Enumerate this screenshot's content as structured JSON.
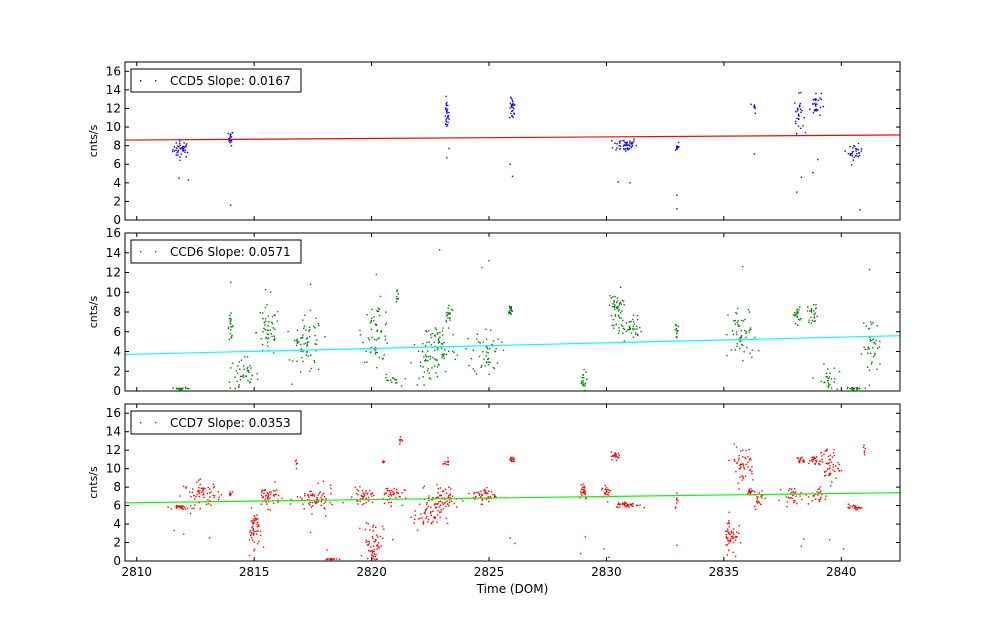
{
  "chart_data": [
    {
      "type": "scatter",
      "ylabel": "cnts/s",
      "xlabel": "",
      "xlim": [
        2809.5,
        2842.5
      ],
      "ylim": [
        0,
        17
      ],
      "yticks": [
        0,
        2,
        4,
        6,
        8,
        10,
        12,
        14,
        16
      ],
      "legend": "CCD5 Slope: 0.0167",
      "legend_placement": "top-left",
      "point_color": "#0000ff",
      "fit_color": "#ff0000",
      "fit_line": {
        "x": [
          2809.5,
          2842.5
        ],
        "y": [
          8.6,
          9.15
        ]
      },
      "clusters": [
        {
          "x": 2811.9,
          "y": 7.6,
          "n": 40,
          "sx": 0.18,
          "sy": 0.45
        },
        {
          "x": 2814.0,
          "y": 8.8,
          "n": 18,
          "sx": 0.05,
          "sy": 0.4
        },
        {
          "x": 2823.2,
          "y": 11.3,
          "n": 28,
          "sx": 0.05,
          "sy": 0.8
        },
        {
          "x": 2826.0,
          "y": 11.9,
          "n": 26,
          "sx": 0.06,
          "sy": 0.6
        },
        {
          "x": 2830.8,
          "y": 8.1,
          "n": 50,
          "sx": 0.25,
          "sy": 0.4
        },
        {
          "x": 2833.0,
          "y": 7.9,
          "n": 10,
          "sx": 0.05,
          "sy": 0.3
        },
        {
          "x": 2836.3,
          "y": 12.1,
          "n": 8,
          "sx": 0.04,
          "sy": 0.3
        },
        {
          "x": 2838.2,
          "y": 11.4,
          "n": 28,
          "sx": 0.1,
          "sy": 1.0
        },
        {
          "x": 2838.9,
          "y": 12.4,
          "n": 30,
          "sx": 0.12,
          "sy": 0.7
        },
        {
          "x": 2840.6,
          "y": 7.3,
          "n": 30,
          "sx": 0.15,
          "sy": 0.4
        }
      ],
      "outliers": [
        [
          2811.8,
          4.5
        ],
        [
          2812.2,
          4.3
        ],
        [
          2814.0,
          1.6
        ],
        [
          2823.2,
          6.7
        ],
        [
          2823.3,
          7.7
        ],
        [
          2825.9,
          6.0
        ],
        [
          2826.0,
          4.7
        ],
        [
          2830.5,
          4.1
        ],
        [
          2831.0,
          4.0
        ],
        [
          2833.0,
          2.7
        ],
        [
          2833.0,
          1.2
        ],
        [
          2836.3,
          7.1
        ],
        [
          2838.1,
          3.0
        ],
        [
          2838.3,
          4.6
        ],
        [
          2838.8,
          5.1
        ],
        [
          2839.0,
          6.5
        ],
        [
          2840.8,
          1.1
        ]
      ]
    },
    {
      "type": "scatter",
      "ylabel": "cnts/s",
      "xlabel": "",
      "xlim": [
        2809.5,
        2842.5
      ],
      "ylim": [
        0,
        16
      ],
      "yticks": [
        0,
        2,
        4,
        6,
        8,
        10,
        12,
        14,
        16
      ],
      "legend": "CCD6 Slope: 0.0571",
      "legend_placement": "top-left",
      "point_color": "#008000",
      "fit_color": "#00ffff",
      "fit_line": {
        "x": [
          2809.5,
          2842.5
        ],
        "y": [
          3.7,
          5.6
        ]
      },
      "clusters": [
        {
          "x": 2811.9,
          "y": 0.25,
          "n": 20,
          "sx": 0.2,
          "sy": 0.05
        },
        {
          "x": 2814.0,
          "y": 6.5,
          "n": 22,
          "sx": 0.06,
          "sy": 0.6
        },
        {
          "x": 2814.5,
          "y": 1.5,
          "n": 45,
          "sx": 0.35,
          "sy": 1.0
        },
        {
          "x": 2815.6,
          "y": 6.0,
          "n": 50,
          "sx": 0.25,
          "sy": 1.3
        },
        {
          "x": 2816.8,
          "y": 5.0,
          "n": 6,
          "sx": 0.05,
          "sy": 0.5
        },
        {
          "x": 2817.3,
          "y": 4.5,
          "n": 60,
          "sx": 0.3,
          "sy": 1.5
        },
        {
          "x": 2820.2,
          "y": 6.0,
          "n": 60,
          "sx": 0.3,
          "sy": 1.5
        },
        {
          "x": 2820.8,
          "y": 1.0,
          "n": 15,
          "sx": 0.2,
          "sy": 0.3
        },
        {
          "x": 2821.1,
          "y": 9.5,
          "n": 8,
          "sx": 0.05,
          "sy": 0.4
        },
        {
          "x": 2822.3,
          "y": 2.8,
          "n": 40,
          "sx": 0.3,
          "sy": 1.3
        },
        {
          "x": 2822.9,
          "y": 4.5,
          "n": 60,
          "sx": 0.35,
          "sy": 1.4
        },
        {
          "x": 2823.3,
          "y": 7.8,
          "n": 20,
          "sx": 0.1,
          "sy": 0.5
        },
        {
          "x": 2824.9,
          "y": 4.0,
          "n": 50,
          "sx": 0.3,
          "sy": 1.2
        },
        {
          "x": 2825.9,
          "y": 8.2,
          "n": 20,
          "sx": 0.05,
          "sy": 0.3
        },
        {
          "x": 2829.0,
          "y": 1.0,
          "n": 20,
          "sx": 0.08,
          "sy": 0.5
        },
        {
          "x": 2830.4,
          "y": 8.5,
          "n": 40,
          "sx": 0.15,
          "sy": 0.6
        },
        {
          "x": 2830.9,
          "y": 6.4,
          "n": 50,
          "sx": 0.3,
          "sy": 0.6
        },
        {
          "x": 2833.0,
          "y": 6.2,
          "n": 12,
          "sx": 0.05,
          "sy": 0.5
        },
        {
          "x": 2835.8,
          "y": 5.5,
          "n": 55,
          "sx": 0.3,
          "sy": 1.5
        },
        {
          "x": 2838.1,
          "y": 7.7,
          "n": 20,
          "sx": 0.08,
          "sy": 0.4
        },
        {
          "x": 2838.8,
          "y": 7.9,
          "n": 25,
          "sx": 0.12,
          "sy": 0.5
        },
        {
          "x": 2839.4,
          "y": 1.0,
          "n": 30,
          "sx": 0.2,
          "sy": 0.8
        },
        {
          "x": 2840.6,
          "y": 0.25,
          "n": 20,
          "sx": 0.2,
          "sy": 0.05
        },
        {
          "x": 2841.3,
          "y": 4.5,
          "n": 40,
          "sx": 0.2,
          "sy": 1.5
        }
      ],
      "outliers": [
        [
          2814.0,
          11.0
        ],
        [
          2815.7,
          10.0
        ],
        [
          2817.4,
          10.8
        ],
        [
          2820.2,
          11.8
        ],
        [
          2822.9,
          14.3
        ],
        [
          2824.7,
          12.5
        ],
        [
          2825.0,
          13.2
        ],
        [
          2830.6,
          10.5
        ],
        [
          2835.8,
          12.6
        ],
        [
          2841.2,
          12.3
        ]
      ]
    },
    {
      "type": "scatter",
      "ylabel": "cnts/s",
      "xlabel": "Time (DOM)",
      "xlim": [
        2809.5,
        2842.5
      ],
      "ylim": [
        0,
        17
      ],
      "yticks": [
        0,
        2,
        4,
        6,
        8,
        10,
        12,
        14,
        16
      ],
      "xticks": [
        2810,
        2815,
        2820,
        2825,
        2830,
        2835,
        2840
      ],
      "legend": "CCD7 Slope: 0.0353",
      "legend_placement": "top-left",
      "point_color": "#ff0000",
      "fit_color": "#00ff00",
      "fit_line": {
        "x": [
          2809.5,
          2842.5
        ],
        "y": [
          6.3,
          7.4
        ]
      },
      "clusters": [
        {
          "x": 2811.9,
          "y": 5.8,
          "n": 25,
          "sx": 0.15,
          "sy": 0.1
        },
        {
          "x": 2812.8,
          "y": 7.2,
          "n": 70,
          "sx": 0.4,
          "sy": 0.7
        },
        {
          "x": 2814.0,
          "y": 7.2,
          "n": 8,
          "sx": 0.05,
          "sy": 0.2
        },
        {
          "x": 2815.0,
          "y": 3.5,
          "n": 50,
          "sx": 0.1,
          "sy": 1.0
        },
        {
          "x": 2815.6,
          "y": 7.0,
          "n": 50,
          "sx": 0.25,
          "sy": 0.6
        },
        {
          "x": 2816.8,
          "y": 10.1,
          "n": 6,
          "sx": 0.03,
          "sy": 0.3
        },
        {
          "x": 2817.6,
          "y": 6.6,
          "n": 70,
          "sx": 0.4,
          "sy": 0.7
        },
        {
          "x": 2818.3,
          "y": 0.2,
          "n": 20,
          "sx": 0.15,
          "sy": 0.05
        },
        {
          "x": 2819.6,
          "y": 7.0,
          "n": 40,
          "sx": 0.2,
          "sy": 0.4
        },
        {
          "x": 2820.1,
          "y": 2.0,
          "n": 60,
          "sx": 0.2,
          "sy": 1.2
        },
        {
          "x": 2820.5,
          "y": 10.8,
          "n": 5,
          "sx": 0.03,
          "sy": 0.1
        },
        {
          "x": 2820.8,
          "y": 7.1,
          "n": 40,
          "sx": 0.3,
          "sy": 0.5
        },
        {
          "x": 2821.2,
          "y": 13.1,
          "n": 8,
          "sx": 0.04,
          "sy": 0.3
        },
        {
          "x": 2822.4,
          "y": 5.0,
          "n": 60,
          "sx": 0.3,
          "sy": 0.9
        },
        {
          "x": 2823.1,
          "y": 6.8,
          "n": 60,
          "sx": 0.35,
          "sy": 0.7
        },
        {
          "x": 2823.2,
          "y": 10.8,
          "n": 12,
          "sx": 0.05,
          "sy": 0.2
        },
        {
          "x": 2824.8,
          "y": 7.1,
          "n": 50,
          "sx": 0.25,
          "sy": 0.4
        },
        {
          "x": 2826.0,
          "y": 11.0,
          "n": 15,
          "sx": 0.06,
          "sy": 0.2
        },
        {
          "x": 2829.0,
          "y": 7.7,
          "n": 25,
          "sx": 0.1,
          "sy": 0.5
        },
        {
          "x": 2830.0,
          "y": 7.5,
          "n": 20,
          "sx": 0.1,
          "sy": 0.4
        },
        {
          "x": 2830.4,
          "y": 11.4,
          "n": 25,
          "sx": 0.1,
          "sy": 0.2
        },
        {
          "x": 2830.9,
          "y": 6.1,
          "n": 40,
          "sx": 0.25,
          "sy": 0.15
        },
        {
          "x": 2833.0,
          "y": 6.5,
          "n": 8,
          "sx": 0.04,
          "sy": 0.5
        },
        {
          "x": 2835.3,
          "y": 2.8,
          "n": 50,
          "sx": 0.15,
          "sy": 1.0
        },
        {
          "x": 2835.8,
          "y": 10.5,
          "n": 50,
          "sx": 0.25,
          "sy": 1.0
        },
        {
          "x": 2836.1,
          "y": 7.5,
          "n": 20,
          "sx": 0.1,
          "sy": 0.2
        },
        {
          "x": 2836.5,
          "y": 6.8,
          "n": 20,
          "sx": 0.1,
          "sy": 0.5
        },
        {
          "x": 2837.9,
          "y": 7.1,
          "n": 30,
          "sx": 0.2,
          "sy": 0.4
        },
        {
          "x": 2838.3,
          "y": 10.9,
          "n": 15,
          "sx": 0.1,
          "sy": 0.2
        },
        {
          "x": 2838.9,
          "y": 10.9,
          "n": 25,
          "sx": 0.15,
          "sy": 0.3
        },
        {
          "x": 2839.0,
          "y": 7.0,
          "n": 25,
          "sx": 0.2,
          "sy": 0.5
        },
        {
          "x": 2839.5,
          "y": 10.4,
          "n": 50,
          "sx": 0.2,
          "sy": 1.0
        },
        {
          "x": 2840.6,
          "y": 5.8,
          "n": 25,
          "sx": 0.15,
          "sy": 0.1
        },
        {
          "x": 2841.0,
          "y": 12.0,
          "n": 6,
          "sx": 0.03,
          "sy": 0.3
        }
      ],
      "outliers": [
        [
          2811.6,
          3.3
        ],
        [
          2812.0,
          2.9
        ],
        [
          2813.1,
          2.5
        ],
        [
          2814.8,
          0.6
        ],
        [
          2815.4,
          1.5
        ],
        [
          2817.4,
          3.1
        ],
        [
          2818.1,
          1.2
        ],
        [
          2820.9,
          2.3
        ],
        [
          2825.9,
          2.5
        ],
        [
          2826.1,
          1.9
        ],
        [
          2828.9,
          0.8
        ],
        [
          2829.1,
          2.6
        ],
        [
          2829.9,
          1.3
        ],
        [
          2830.1,
          0.4
        ],
        [
          2833.0,
          1.7
        ],
        [
          2835.5,
          0.5
        ],
        [
          2838.3,
          1.6
        ],
        [
          2838.4,
          2.4
        ],
        [
          2839.5,
          2.3
        ],
        [
          2840.1,
          1.3
        ]
      ]
    }
  ]
}
